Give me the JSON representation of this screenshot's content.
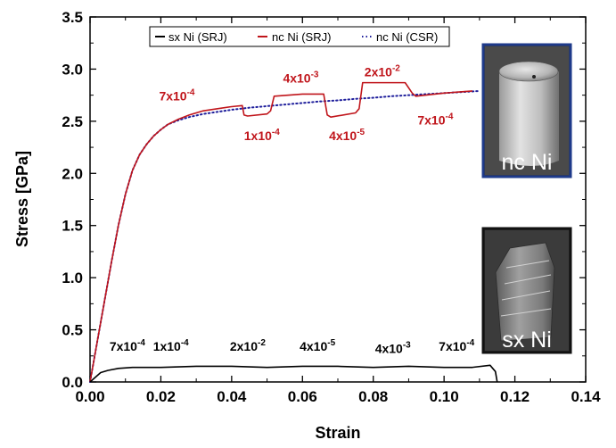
{
  "chart_data": {
    "type": "line",
    "xlabel": "Strain",
    "ylabel": "Stress [GPa]",
    "xlim": [
      0.0,
      0.14
    ],
    "ylim": [
      0.0,
      3.5
    ],
    "xticks": [
      0.0,
      0.02,
      0.04,
      0.06,
      0.08,
      0.1,
      0.12,
      0.14
    ],
    "yticks": [
      0.0,
      0.5,
      1.0,
      1.5,
      2.0,
      2.5,
      3.0,
      3.5
    ],
    "xtick_labels": [
      "0.00",
      "0.02",
      "0.04",
      "0.06",
      "0.08",
      "0.10",
      "0.12",
      "0.14"
    ],
    "ytick_labels": [
      "0.0",
      "0.5",
      "1.0",
      "1.5",
      "2.0",
      "2.5",
      "3.0",
      "3.5"
    ],
    "legend_position": "top-center",
    "series": [
      {
        "name": "sx Ni (SRJ)",
        "color": "#000000",
        "style": "solid",
        "x": [
          0.0,
          0.001,
          0.002,
          0.003,
          0.005,
          0.008,
          0.012,
          0.02,
          0.03,
          0.04,
          0.05,
          0.06,
          0.07,
          0.08,
          0.09,
          0.1,
          0.108,
          0.113,
          0.1145,
          0.115
        ],
        "y": [
          0.0,
          0.03,
          0.06,
          0.09,
          0.11,
          0.13,
          0.14,
          0.14,
          0.15,
          0.15,
          0.14,
          0.15,
          0.15,
          0.14,
          0.15,
          0.14,
          0.14,
          0.16,
          0.1,
          0.0
        ]
      },
      {
        "name": "nc Ni (SRJ)",
        "color": "#c0151b",
        "style": "solid",
        "x": [
          0.0,
          0.002,
          0.004,
          0.006,
          0.008,
          0.01,
          0.012,
          0.014,
          0.016,
          0.018,
          0.02,
          0.022,
          0.025,
          0.028,
          0.032,
          0.036,
          0.04,
          0.043,
          0.0435,
          0.0445,
          0.05,
          0.051,
          0.052,
          0.06,
          0.066,
          0.067,
          0.068,
          0.075,
          0.076,
          0.077,
          0.089,
          0.091,
          0.092,
          0.1,
          0.108
        ],
        "y": [
          0.0,
          0.38,
          0.76,
          1.14,
          1.5,
          1.8,
          2.03,
          2.18,
          2.28,
          2.36,
          2.42,
          2.47,
          2.52,
          2.56,
          2.6,
          2.62,
          2.64,
          2.65,
          2.56,
          2.55,
          2.57,
          2.6,
          2.74,
          2.76,
          2.76,
          2.56,
          2.54,
          2.58,
          2.62,
          2.87,
          2.87,
          2.77,
          2.74,
          2.77,
          2.79
        ]
      },
      {
        "name": "nc Ni (CSR)",
        "color": "#1f1f9c",
        "style": "dotted",
        "x": [
          0.0,
          0.002,
          0.004,
          0.006,
          0.008,
          0.01,
          0.012,
          0.014,
          0.016,
          0.018,
          0.02,
          0.022,
          0.025,
          0.028,
          0.032,
          0.036,
          0.04,
          0.045,
          0.05,
          0.055,
          0.06,
          0.065,
          0.07,
          0.075,
          0.08,
          0.085,
          0.09,
          0.095,
          0.1,
          0.105,
          0.11
        ],
        "y": [
          0.0,
          0.38,
          0.76,
          1.14,
          1.5,
          1.8,
          2.03,
          2.18,
          2.28,
          2.36,
          2.42,
          2.47,
          2.51,
          2.54,
          2.57,
          2.59,
          2.61,
          2.63,
          2.645,
          2.66,
          2.675,
          2.69,
          2.7,
          2.715,
          2.725,
          2.74,
          2.75,
          2.76,
          2.77,
          2.78,
          2.79
        ]
      }
    ],
    "annotations_nc": [
      {
        "text": "7x10",
        "exp": "-4",
        "x": 0.0195,
        "y": 2.7
      },
      {
        "text": "1x10",
        "exp": "-4",
        "x": 0.0435,
        "y": 2.32
      },
      {
        "text": "4x10",
        "exp": "-3",
        "x": 0.0545,
        "y": 2.87
      },
      {
        "text": "4x10",
        "exp": "-5",
        "x": 0.0675,
        "y": 2.32
      },
      {
        "text": "2x10",
        "exp": "-2",
        "x": 0.0775,
        "y": 2.93
      },
      {
        "text": "7x10",
        "exp": "-4",
        "x": 0.0925,
        "y": 2.47
      }
    ],
    "annotations_sx": [
      {
        "text": "7x10",
        "exp": "-4",
        "x": 0.0055,
        "y": 0.3
      },
      {
        "text": "1x10",
        "exp": "-4",
        "x": 0.0178,
        "y": 0.3
      },
      {
        "text": "2x10",
        "exp": "-2",
        "x": 0.0395,
        "y": 0.3
      },
      {
        "text": "4x10",
        "exp": "-5",
        "x": 0.0592,
        "y": 0.3
      },
      {
        "text": "4x10",
        "exp": "-3",
        "x": 0.0805,
        "y": 0.28
      },
      {
        "text": "7x10",
        "exp": "-4",
        "x": 0.0985,
        "y": 0.3
      }
    ],
    "insets": [
      {
        "label": "nc Ni",
        "border_color": "#1e3a8a"
      },
      {
        "label": "sx Ni",
        "border_color": "#111111"
      }
    ]
  }
}
